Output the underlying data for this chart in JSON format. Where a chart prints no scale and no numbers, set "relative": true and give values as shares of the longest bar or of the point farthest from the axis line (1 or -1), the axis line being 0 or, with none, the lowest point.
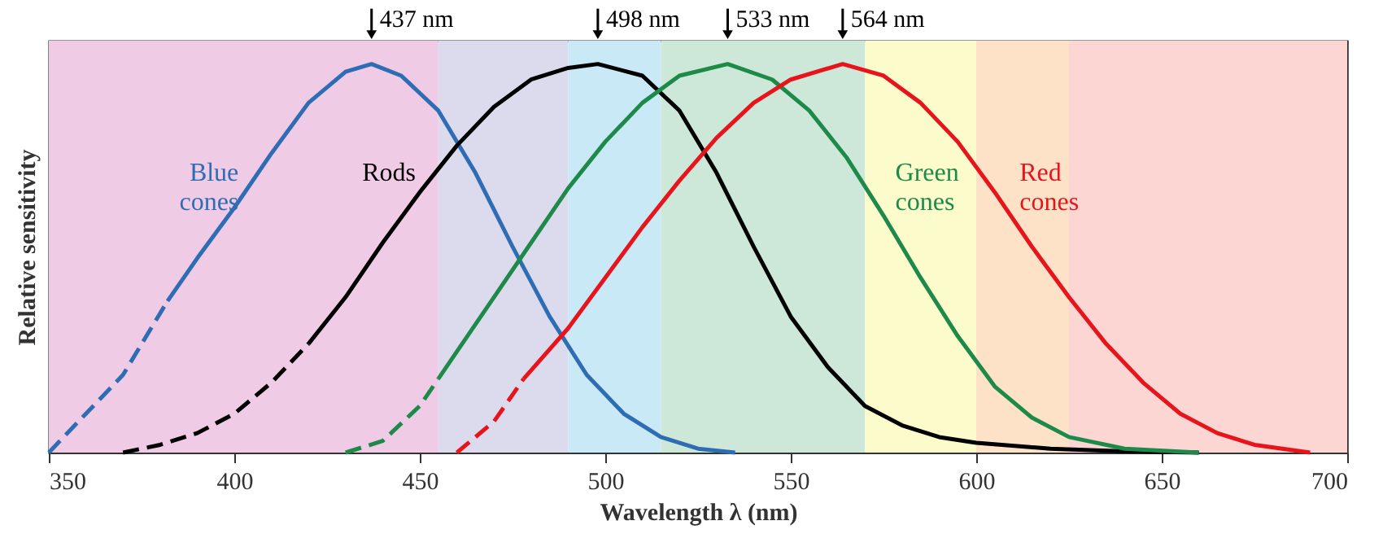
{
  "chart_data": {
    "type": "line",
    "relative": true,
    "xlabel": "Wavelength  λ  (nm)",
    "ylabel": "Relative sensitivity",
    "xlim": [
      350,
      700
    ],
    "xticks": [
      350,
      400,
      450,
      500,
      550,
      600,
      650,
      700
    ],
    "grid": false,
    "marker": "none",
    "bands": [
      {
        "axis": "x",
        "from": 350,
        "to": 455,
        "color": "#f0cbe6"
      },
      {
        "axis": "x",
        "from": 455,
        "to": 490,
        "color": "#dcdbee"
      },
      {
        "axis": "x",
        "from": 490,
        "to": 515,
        "color": "#c8e9f5"
      },
      {
        "axis": "x",
        "from": 515,
        "to": 570,
        "color": "#cde8d8"
      },
      {
        "axis": "x",
        "from": 570,
        "to": 600,
        "color": "#fbfbcc"
      },
      {
        "axis": "x",
        "from": 600,
        "to": 625,
        "color": "#fde2c8"
      },
      {
        "axis": "x",
        "from": 625,
        "to": 700,
        "color": "#fbd6d2"
      }
    ],
    "annotations": [
      {
        "text": "437 nm",
        "x": 437,
        "y": 1
      },
      {
        "text": "498 nm",
        "x": 498,
        "y": 1
      },
      {
        "text": "533 nm",
        "x": 533,
        "y": 1
      },
      {
        "text": "564 nm",
        "x": 564,
        "y": 1
      }
    ],
    "series": [
      {
        "color": "#2e6db4",
        "line_style": "dashed",
        "x": [
          350,
          360,
          370,
          382
        ],
        "values": [
          0,
          0.1,
          0.2,
          0.39
        ]
      },
      {
        "name": "Blue cones",
        "color": "#2e6db4",
        "line_style": "solid",
        "x": [
          382,
          390,
          400,
          410,
          420,
          430,
          437,
          445,
          455,
          465,
          475,
          485,
          495,
          505,
          515,
          525,
          535
        ],
        "values": [
          0.39,
          0.5,
          0.63,
          0.77,
          0.9,
          0.98,
          1,
          0.97,
          0.88,
          0.72,
          0.53,
          0.35,
          0.2,
          0.1,
          0.04,
          0.01,
          0
        ]
      },
      {
        "color": "#000000",
        "line_style": "dashed",
        "x": [
          370,
          380,
          390,
          400,
          410,
          420
        ],
        "values": [
          0,
          0.02,
          0.05,
          0.1,
          0.18,
          0.28
        ]
      },
      {
        "name": "Rods",
        "color": "#000000",
        "line_style": "solid",
        "x": [
          420,
          430,
          440,
          450,
          460,
          470,
          480,
          490,
          498,
          510,
          520,
          530,
          540,
          550,
          560,
          570,
          580,
          590,
          600,
          620,
          640,
          660
        ],
        "values": [
          0.28,
          0.4,
          0.54,
          0.67,
          0.79,
          0.89,
          0.96,
          0.99,
          1,
          0.97,
          0.88,
          0.72,
          0.53,
          0.35,
          0.22,
          0.12,
          0.07,
          0.04,
          0.025,
          0.01,
          0.003,
          0
        ]
      },
      {
        "color": "#1e8a4a",
        "line_style": "dashed",
        "x": [
          430,
          440,
          450,
          455
        ],
        "values": [
          0,
          0.03,
          0.12,
          0.19
        ]
      },
      {
        "name": "Green cones",
        "color": "#1e8a4a",
        "line_style": "solid",
        "x": [
          455,
          460,
          470,
          480,
          490,
          500,
          510,
          520,
          533,
          545,
          555,
          565,
          575,
          585,
          595,
          605,
          615,
          625,
          640,
          660
        ],
        "values": [
          0.19,
          0.26,
          0.4,
          0.54,
          0.68,
          0.8,
          0.9,
          0.97,
          1,
          0.96,
          0.88,
          0.76,
          0.61,
          0.45,
          0.3,
          0.17,
          0.09,
          0.04,
          0.01,
          0
        ]
      },
      {
        "color": "#e8141c",
        "line_style": "dashed",
        "x": [
          460,
          470,
          478
        ],
        "values": [
          0,
          0.08,
          0.19
        ]
      },
      {
        "name": "Red cones",
        "color": "#e8141c",
        "line_style": "solid",
        "x": [
          478,
          490,
          500,
          510,
          520,
          530,
          540,
          550,
          564,
          575,
          585,
          595,
          605,
          615,
          625,
          635,
          645,
          655,
          665,
          675,
          690
        ],
        "values": [
          0.19,
          0.32,
          0.45,
          0.58,
          0.7,
          0.81,
          0.9,
          0.96,
          1,
          0.97,
          0.9,
          0.8,
          0.67,
          0.53,
          0.4,
          0.28,
          0.18,
          0.1,
          0.05,
          0.02,
          0
        ]
      }
    ]
  }
}
